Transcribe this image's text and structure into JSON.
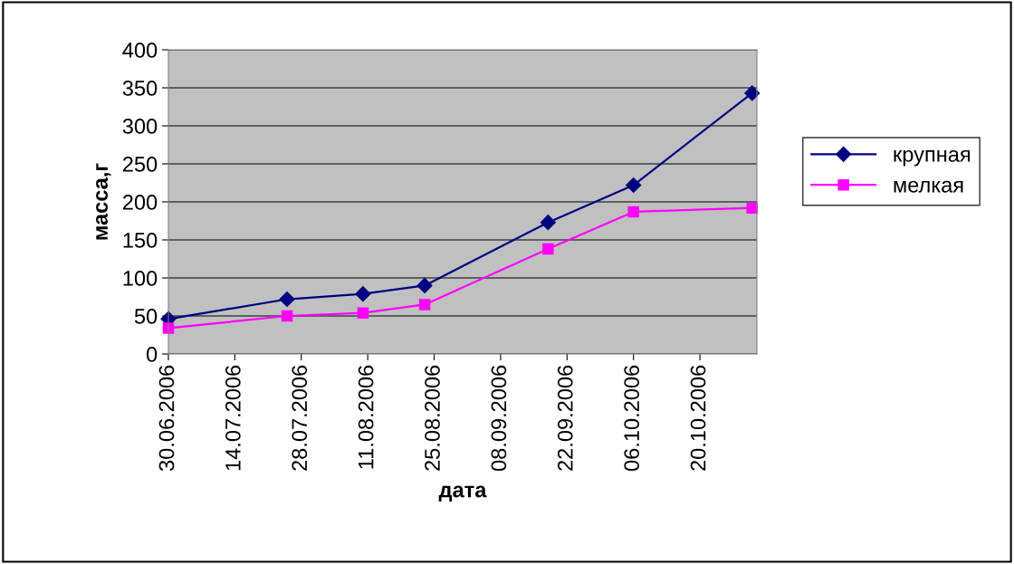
{
  "chart_data": {
    "type": "line",
    "xlabel": "дата",
    "ylabel": "масса,г",
    "xlim": [
      "2006-06-30",
      "2006-11-01"
    ],
    "ylim": [
      0,
      400
    ],
    "yticks": [
      0,
      50,
      100,
      150,
      200,
      250,
      300,
      350,
      400
    ],
    "xticks": [
      {
        "value": "2006-06-30",
        "label": "30.06.2006"
      },
      {
        "value": "2006-07-14",
        "label": "14.07.2006"
      },
      {
        "value": "2006-07-28",
        "label": "28.07.2006"
      },
      {
        "value": "2006-08-11",
        "label": "11.08.2006"
      },
      {
        "value": "2006-08-25",
        "label": "25.08.2006"
      },
      {
        "value": "2006-09-08",
        "label": "08.09.2006"
      },
      {
        "value": "2006-09-22",
        "label": "22.09.2006"
      },
      {
        "value": "2006-10-06",
        "label": "06.10.2006"
      },
      {
        "value": "2006-10-20",
        "label": "20.10.2006"
      }
    ],
    "x": [
      "2006-06-30",
      "2006-07-25",
      "2006-08-10",
      "2006-08-23",
      "2006-09-18",
      "2006-10-06",
      "2006-10-31"
    ],
    "grid": "y",
    "legend": "right",
    "series": [
      {
        "name": "крупная",
        "color": "#000080",
        "marker": "diamond",
        "values": [
          46,
          72,
          79,
          90,
          173,
          222,
          343
        ]
      },
      {
        "name": "мелкая",
        "color": "#ff00ff",
        "marker": "square",
        "values": [
          34,
          50,
          54,
          65,
          138,
          187,
          192
        ]
      }
    ]
  }
}
